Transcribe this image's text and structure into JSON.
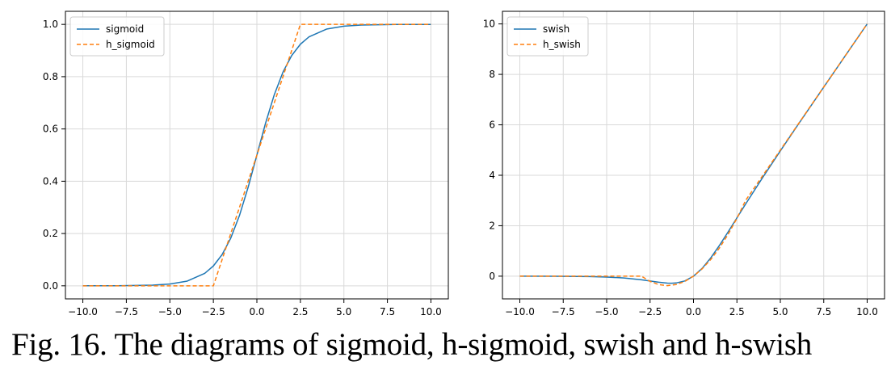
{
  "caption": "Fig. 16.  The diagrams of sigmoid, h-sigmoid, swish and h-swish",
  "colors": {
    "series1": "#1f77b4",
    "series2": "#ff7f0e",
    "grid": "#d9d9d9",
    "axis": "#000000"
  },
  "chart_data": [
    {
      "type": "line",
      "xlim": [
        -11,
        11
      ],
      "ylim": [
        -0.05,
        1.05
      ],
      "xticks": [
        -10.0,
        -7.5,
        -5.0,
        -2.5,
        0.0,
        2.5,
        5.0,
        7.5,
        10.0
      ],
      "xtick_labels": [
        "−10.0",
        "−7.5",
        "−5.0",
        "−2.5",
        "0.0",
        "2.5",
        "5.0",
        "7.5",
        "10.0"
      ],
      "yticks": [
        0.0,
        0.2,
        0.4,
        0.6,
        0.8,
        1.0
      ],
      "ytick_labels": [
        "0.0",
        "0.2",
        "0.4",
        "0.6",
        "0.8",
        "1.0"
      ],
      "grid": true,
      "legend_position": "upper-left",
      "series": [
        {
          "name": "sigmoid",
          "style": "solid",
          "color": "#1f77b4",
          "x": [
            -10,
            -8,
            -6,
            -5,
            -4,
            -3,
            -2.5,
            -2,
            -1.5,
            -1,
            -0.5,
            0,
            0.5,
            1,
            1.5,
            2,
            2.5,
            3,
            4,
            5,
            6,
            8,
            10
          ],
          "y": [
            4.54e-05,
            0.000335,
            0.00247,
            0.00669,
            0.018,
            0.0474,
            0.0759,
            0.1192,
            0.1824,
            0.2689,
            0.3775,
            0.5,
            0.6225,
            0.7311,
            0.8176,
            0.8808,
            0.9241,
            0.9526,
            0.982,
            0.9933,
            0.9975,
            0.99966,
            0.99995
          ]
        },
        {
          "name": "h_sigmoid",
          "style": "dashed",
          "color": "#ff7f0e",
          "x": [
            -10,
            -2.5,
            2.5,
            10
          ],
          "y": [
            0.0,
            0.0,
            1.0,
            1.0
          ]
        }
      ]
    },
    {
      "type": "line",
      "xlim": [
        -11,
        11
      ],
      "ylim": [
        -0.9,
        10.5
      ],
      "xticks": [
        -10.0,
        -7.5,
        -5.0,
        -2.5,
        0.0,
        2.5,
        5.0,
        7.5,
        10.0
      ],
      "xtick_labels": [
        "−10.0",
        "−7.5",
        "−5.0",
        "−2.5",
        "0.0",
        "2.5",
        "5.0",
        "7.5",
        "10.0"
      ],
      "yticks": [
        0,
        2,
        4,
        6,
        8,
        10
      ],
      "ytick_labels": [
        "0",
        "2",
        "4",
        "6",
        "8",
        "10"
      ],
      "grid": true,
      "legend_position": "upper-left",
      "series": [
        {
          "name": "swish",
          "style": "solid",
          "color": "#1f77b4",
          "x": [
            -10,
            -8,
            -6,
            -5,
            -4,
            -3,
            -2.5,
            -2,
            -1.5,
            -1.25,
            -1,
            -0.5,
            0,
            0.5,
            1,
            1.5,
            2,
            2.5,
            3,
            4,
            5,
            6,
            8,
            10
          ],
          "y": [
            -0.0005,
            -0.0027,
            -0.0148,
            -0.0335,
            -0.072,
            -0.142,
            -0.19,
            -0.238,
            -0.274,
            -0.279,
            -0.269,
            -0.189,
            0.0,
            0.311,
            0.731,
            1.226,
            1.762,
            2.31,
            2.858,
            3.928,
            4.967,
            5.985,
            7.997,
            9.9995
          ]
        },
        {
          "name": "h_swish",
          "style": "dashed",
          "color": "#ff7f0e",
          "x": [
            -10,
            -3,
            -2.5,
            -2,
            -1.5,
            -1,
            -0.5,
            0,
            0.5,
            1,
            1.5,
            2,
            2.5,
            3,
            10
          ],
          "y": [
            0,
            0,
            -0.208,
            -0.333,
            -0.375,
            -0.333,
            -0.208,
            0,
            0.292,
            0.667,
            1.125,
            1.667,
            2.292,
            3,
            10
          ]
        }
      ]
    }
  ]
}
